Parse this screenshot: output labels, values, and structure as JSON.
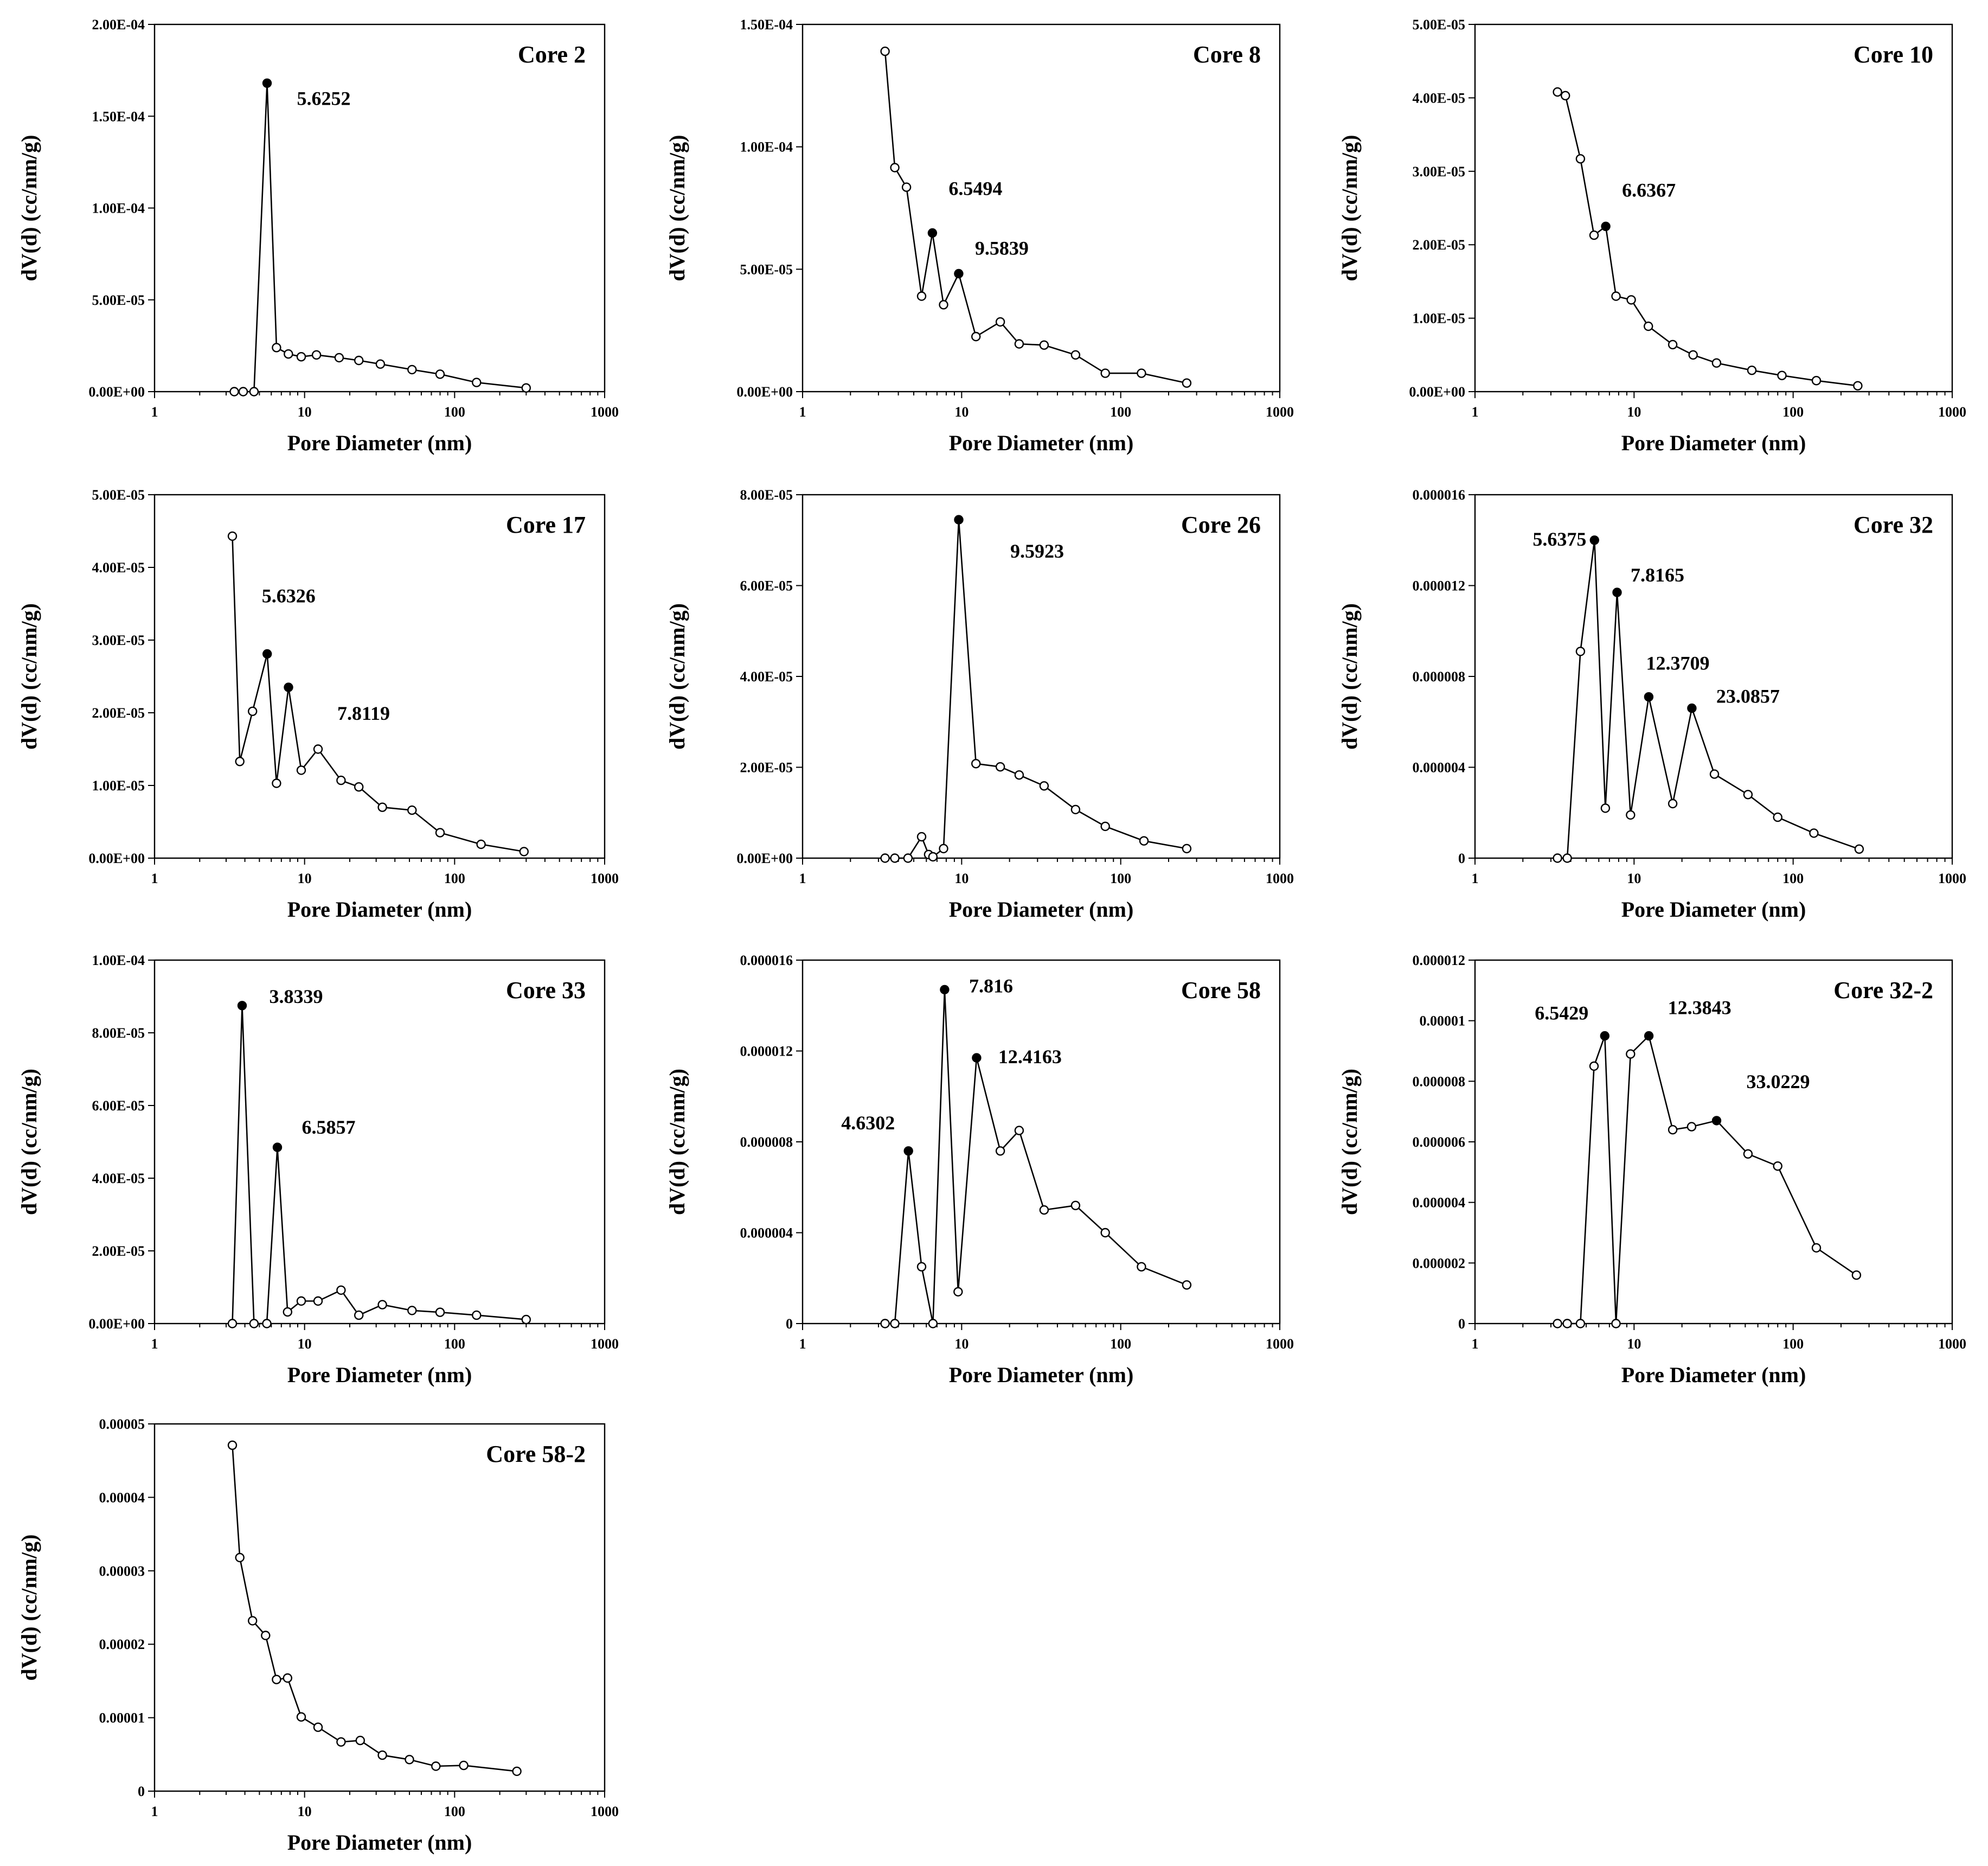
{
  "chart_data": [
    {
      "type": "line",
      "title": "Core 2",
      "xlabel": "Pore Diameter (nm)",
      "ylabel": "dV(d) (cc/nm/g)",
      "xscale": "log",
      "xlim": [
        1,
        1000
      ],
      "xticks": [
        1,
        10,
        100,
        1000
      ],
      "xtick_labels": [
        "1",
        "10",
        "100",
        "1000"
      ],
      "ylim": [
        0,
        0.0002
      ],
      "yticks": [
        0,
        5e-05,
        0.0001,
        0.00015,
        0.0002
      ],
      "ytick_labels": [
        "0.00E+00",
        "5.00E-05",
        "1.00E-04",
        "1.50E-04",
        "2.00E-04"
      ],
      "x": [
        3.4,
        3.9,
        4.6,
        5.6252,
        6.5,
        7.8,
        9.5,
        12,
        17,
        23,
        32,
        52,
        80,
        140,
        300
      ],
      "y": [
        0,
        0,
        0,
        0.000168,
        2.4e-05,
        2.05e-05,
        1.9e-05,
        2e-05,
        1.85e-05,
        1.7e-05,
        1.5e-05,
        1.2e-05,
        9.5e-06,
        5e-06,
        2e-06
      ],
      "peaks": [
        {
          "x": 5.6252,
          "label": "5.6252"
        }
      ]
    },
    {
      "type": "line",
      "title": "Core 8",
      "xlabel": "Pore Diameter (nm)",
      "ylabel": "dV(d) (cc/nm/g)",
      "xscale": "log",
      "xlim": [
        1,
        1000
      ],
      "xticks": [
        1,
        10,
        100,
        1000
      ],
      "xtick_labels": [
        "1",
        "10",
        "100",
        "1000"
      ],
      "ylim": [
        0,
        0.00015
      ],
      "yticks": [
        0,
        5e-05,
        0.0001,
        0.00015
      ],
      "ytick_labels": [
        "0.00E+00",
        "5.00E-05",
        "1.00E-04",
        "1.50E-04"
      ],
      "x": [
        3.3,
        3.8,
        4.5,
        5.6,
        6.5494,
        7.7,
        9.5839,
        12.3,
        17.5,
        23,
        33,
        52,
        80,
        135,
        260
      ],
      "y": [
        0.000139,
        9.15e-05,
        8.35e-05,
        3.9e-05,
        6.48e-05,
        3.55e-05,
        4.82e-05,
        2.25e-05,
        2.85e-05,
        1.95e-05,
        1.9e-05,
        1.5e-05,
        7.5e-06,
        7.5e-06,
        3.5e-06
      ],
      "peaks": [
        {
          "x": 6.5494,
          "label": "6.5494"
        },
        {
          "x": 9.5839,
          "label": "9.5839"
        }
      ]
    },
    {
      "type": "line",
      "title": "Core 10",
      "xlabel": "Pore Diameter (nm)",
      "ylabel": "dV(d) (cc/nm/g)",
      "xscale": "log",
      "xlim": [
        1,
        1000
      ],
      "xticks": [
        1,
        10,
        100,
        1000
      ],
      "xtick_labels": [
        "1",
        "10",
        "100",
        "1000"
      ],
      "ylim": [
        0,
        5e-05
      ],
      "yticks": [
        0,
        1e-05,
        2e-05,
        3e-05,
        4e-05,
        5e-05
      ],
      "ytick_labels": [
        "0.00E+00",
        "1.00E-05",
        "2.00E-05",
        "3.00E-05",
        "4.00E-05",
        "5.00E-05"
      ],
      "x": [
        3.3,
        3.7,
        4.6,
        5.6,
        6.6367,
        7.7,
        9.6,
        12.3,
        17.5,
        23.5,
        33,
        55,
        85,
        140,
        255
      ],
      "y": [
        4.08e-05,
        4.03e-05,
        3.17e-05,
        2.13e-05,
        2.25e-05,
        1.3e-05,
        1.25e-05,
        8.9e-06,
        6.4e-06,
        5e-06,
        3.9e-06,
        2.9e-06,
        2.2e-06,
        1.5e-06,
        8e-07
      ],
      "peaks": [
        {
          "x": 6.6367,
          "label": "6.6367"
        }
      ]
    },
    {
      "type": "line",
      "title": "Core 17",
      "xlabel": "Pore Diameter (nm)",
      "ylabel": "dV(d) (cc/nm/g)",
      "xscale": "log",
      "xlim": [
        1,
        1000
      ],
      "xticks": [
        1,
        10,
        100,
        1000
      ],
      "xtick_labels": [
        "1",
        "10",
        "100",
        "1000"
      ],
      "ylim": [
        0,
        5e-05
      ],
      "yticks": [
        0,
        1e-05,
        2e-05,
        3e-05,
        4e-05,
        5e-05
      ],
      "ytick_labels": [
        "0.00E+00",
        "1.00E-05",
        "2.00E-05",
        "3.00E-05",
        "4.00E-05",
        "5.00E-05"
      ],
      "x": [
        3.3,
        3.7,
        4.5,
        5.6326,
        6.5,
        7.8119,
        9.5,
        12.3,
        17.5,
        23,
        33,
        52,
        80,
        150,
        290
      ],
      "y": [
        4.43e-05,
        1.33e-05,
        2.02e-05,
        2.81e-05,
        1.03e-05,
        2.35e-05,
        1.21e-05,
        1.5e-05,
        1.07e-05,
        9.8e-06,
        7e-06,
        6.6e-06,
        3.5e-06,
        1.9e-06,
        9e-07
      ],
      "peaks": [
        {
          "x": 5.6326,
          "label": "5.6326"
        },
        {
          "x": 7.8119,
          "label": "7.8119"
        }
      ]
    },
    {
      "type": "line",
      "title": "Core 26",
      "xlabel": "Pore Diameter (nm)",
      "ylabel": "dV(d) (cc/nm/g)",
      "xscale": "log",
      "xlim": [
        1,
        1000
      ],
      "xticks": [
        1,
        10,
        100,
        1000
      ],
      "xtick_labels": [
        "1",
        "10",
        "100",
        "1000"
      ],
      "ylim": [
        0,
        8e-05
      ],
      "yticks": [
        0,
        2e-05,
        4e-05,
        6e-05,
        8e-05
      ],
      "ytick_labels": [
        "0.00E+00",
        "2.00E-05",
        "4.00E-05",
        "6.00E-05",
        "8.00E-05"
      ],
      "x": [
        3.3,
        3.8,
        4.6,
        5.6,
        6.2,
        6.6,
        7.7,
        9.5923,
        12.3,
        17.5,
        23,
        33,
        52,
        80,
        140,
        260
      ],
      "y": [
        0,
        0,
        0,
        4.7e-06,
        8e-07,
        3e-07,
        2.1e-06,
        7.45e-05,
        2.08e-05,
        2.01e-05,
        1.83e-05,
        1.59e-05,
        1.07e-05,
        7e-06,
        3.8e-06,
        2.1e-06
      ],
      "peaks": [
        {
          "x": 9.5923,
          "label": "9.5923"
        }
      ]
    },
    {
      "type": "line",
      "title": "Core 32",
      "xlabel": "Pore Diameter (nm)",
      "ylabel": "dV(d) (cc/nm/g)",
      "xscale": "log",
      "xlim": [
        1,
        1000
      ],
      "xticks": [
        1,
        10,
        100,
        1000
      ],
      "xtick_labels": [
        "1",
        "10",
        "100",
        "1000"
      ],
      "ylim": [
        0,
        1.6e-05
      ],
      "yticks": [
        0,
        4e-06,
        8e-06,
        1.2e-05,
        1.6e-05
      ],
      "ytick_labels": [
        "0",
        "0.000004",
        "0.000008",
        "0.000012",
        "0.000016"
      ],
      "x": [
        3.3,
        3.8,
        4.6,
        5.6375,
        6.6,
        7.8165,
        9.5,
        12.3709,
        17.5,
        23.0857,
        32,
        52,
        80,
        135,
        260
      ],
      "y": [
        0,
        0,
        9.1e-06,
        1.4e-05,
        2.2e-06,
        1.17e-05,
        1.9e-06,
        7.1e-06,
        2.4e-06,
        6.6e-06,
        3.7e-06,
        2.8e-06,
        1.8e-06,
        1.1e-06,
        4e-07
      ],
      "peaks": [
        {
          "x": 5.6375,
          "label": "5.6375"
        },
        {
          "x": 7.8165,
          "label": "7.8165"
        },
        {
          "x": 12.3709,
          "label": "12.3709"
        },
        {
          "x": 23.0857,
          "label": "23.0857"
        }
      ]
    },
    {
      "type": "line",
      "title": "Core 33",
      "xlabel": "Pore Diameter (nm)",
      "ylabel": "dV(d) (cc/nm/g)",
      "xscale": "log",
      "xlim": [
        1,
        1000
      ],
      "xticks": [
        1,
        10,
        100,
        1000
      ],
      "xtick_labels": [
        "1",
        "10",
        "100",
        "1000"
      ],
      "ylim": [
        0,
        0.0001
      ],
      "yticks": [
        0,
        2e-05,
        4e-05,
        6e-05,
        8e-05,
        0.0001
      ],
      "ytick_labels": [
        "0.00E+00",
        "2.00E-05",
        "4.00E-05",
        "6.00E-05",
        "8.00E-05",
        "1.00E-04"
      ],
      "x": [
        3.3,
        3.8339,
        4.6,
        5.6,
        6.5857,
        7.7,
        9.5,
        12.3,
        17.5,
        23,
        33,
        52,
        80,
        140,
        300
      ],
      "y": [
        0,
        8.75e-05,
        0,
        0,
        4.85e-05,
        3.2e-06,
        6.2e-06,
        6.2e-06,
        9.2e-06,
        2.3e-06,
        5.2e-06,
        3.6e-06,
        3.1e-06,
        2.3e-06,
        1.1e-06
      ],
      "peaks": [
        {
          "x": 3.8339,
          "label": "3.8339"
        },
        {
          "x": 6.5857,
          "label": "6.5857"
        }
      ]
    },
    {
      "type": "line",
      "title": "Core 58",
      "xlabel": "Pore Diameter (nm)",
      "ylabel": "dV(d) (cc/nm/g)",
      "xscale": "log",
      "xlim": [
        1,
        1000
      ],
      "xticks": [
        1,
        10,
        100,
        1000
      ],
      "xtick_labels": [
        "1",
        "10",
        "100",
        "1000"
      ],
      "ylim": [
        0,
        1.6e-05
      ],
      "yticks": [
        0,
        4e-06,
        8e-06,
        1.2e-05,
        1.6e-05
      ],
      "ytick_labels": [
        "0",
        "0.000004",
        "0.000008",
        "0.000012",
        "0.000016"
      ],
      "x": [
        3.3,
        3.8,
        4.6302,
        5.6,
        6.6,
        7.816,
        9.5,
        12.4163,
        17.5,
        23,
        33,
        52,
        80,
        135,
        260
      ],
      "y": [
        0,
        0,
        7.6e-06,
        2.5e-06,
        0,
        1.47e-05,
        1.4e-06,
        1.17e-05,
        7.6e-06,
        8.5e-06,
        5e-06,
        5.2e-06,
        4e-06,
        2.5e-06,
        1.7e-06
      ],
      "peaks": [
        {
          "x": 4.6302,
          "label": "4.6302"
        },
        {
          "x": 7.816,
          "label": "7.816"
        },
        {
          "x": 12.4163,
          "label": "12.4163"
        }
      ]
    },
    {
      "type": "line",
      "title": "Core 32-2",
      "xlabel": "Pore Diameter (nm)",
      "ylabel": "dV(d) (cc/nm/g)",
      "xscale": "log",
      "xlim": [
        1,
        1000
      ],
      "xticks": [
        1,
        10,
        100,
        1000
      ],
      "xtick_labels": [
        "1",
        "10",
        "100",
        "1000"
      ],
      "ylim": [
        0,
        1.2e-05
      ],
      "yticks": [
        0,
        2e-06,
        4e-06,
        6e-06,
        8e-06,
        1e-05,
        1.2e-05
      ],
      "ytick_labels": [
        "0",
        "0.000002",
        "0.000004",
        "0.000006",
        "0.000008",
        "0.00001",
        "0.000012"
      ],
      "x": [
        3.3,
        3.8,
        4.6,
        5.6,
        6.5429,
        7.7,
        9.5,
        12.3843,
        17.5,
        23,
        33.0229,
        52,
        80,
        140,
        250
      ],
      "y": [
        0,
        0,
        0,
        8.5e-06,
        9.5e-06,
        0,
        8.9e-06,
        9.5e-06,
        6.4e-06,
        6.5e-06,
        6.7e-06,
        5.6e-06,
        5.2e-06,
        2.5e-06,
        1.6e-06
      ],
      "peaks": [
        {
          "x": 6.5429,
          "label": "6.5429"
        },
        {
          "x": 12.3843,
          "label": "12.3843"
        },
        {
          "x": 33.0229,
          "label": "33.0229"
        }
      ]
    },
    {
      "type": "line",
      "title": "Core 58-2",
      "xlabel": "Pore Diameter (nm)",
      "ylabel": "dV(d) (cc/nm/g)",
      "xscale": "log",
      "xlim": [
        1,
        1000
      ],
      "xticks": [
        1,
        10,
        100,
        1000
      ],
      "xtick_labels": [
        "1",
        "10",
        "100",
        "1000"
      ],
      "ylim": [
        0,
        5e-05
      ],
      "yticks": [
        0,
        1e-05,
        2e-05,
        3e-05,
        4e-05,
        5e-05
      ],
      "ytick_labels": [
        "0",
        "0.00001",
        "0.00002",
        "0.00003",
        "0.00004",
        "0.00005"
      ],
      "x": [
        3.3,
        3.7,
        4.5,
        5.5,
        6.5,
        7.7,
        9.5,
        12.3,
        17.5,
        23.5,
        33,
        50,
        75,
        115,
        260
      ],
      "y": [
        4.71e-05,
        3.18e-05,
        2.32e-05,
        2.12e-05,
        1.52e-05,
        1.54e-05,
        1.01e-05,
        8.7e-06,
        6.7e-06,
        6.9e-06,
        4.9e-06,
        4.3e-06,
        3.4e-06,
        3.5e-06,
        2.7e-06
      ],
      "peaks": []
    }
  ]
}
